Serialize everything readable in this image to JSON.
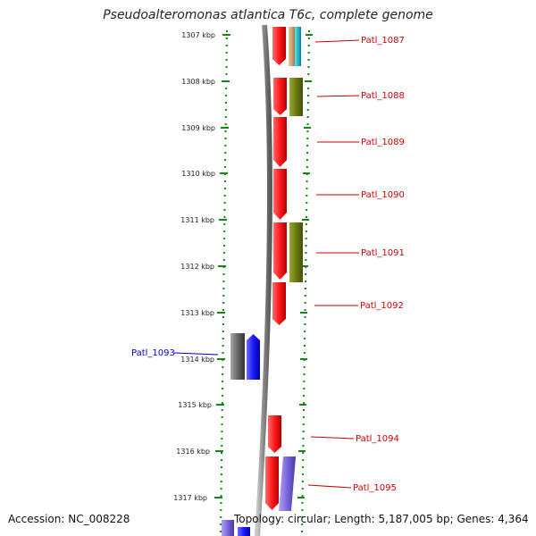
{
  "title": "Pseudoalteromonas atlantica T6c, complete genome",
  "footer": {
    "accession": "Accession: NC_008228",
    "summary": "Topology: circular; Length: 5,187,005 bp; Genes: 4,364"
  },
  "colors": {
    "forward_gene": "#ee1111",
    "reverse_gene": "#1111ee",
    "olive": "#6b7a10",
    "cyan": "#22bbcc",
    "tan": "#c8a070",
    "gray": "#666666",
    "lavender": "#7a66dd",
    "ruler": "#118811",
    "label_forward": "#cc0000",
    "label_reverse": "#0000cc"
  },
  "ruler": {
    "unit": "kbp",
    "ticks": [
      "1307 kbp",
      "1308 kbp",
      "1309 kbp",
      "1310 kbp",
      "1311 kbp",
      "1312 kbp",
      "1313 kbp",
      "1314 kbp",
      "1315 kbp",
      "1316 kbp",
      "1317 kbp"
    ]
  },
  "genes": [
    {
      "name": "Patl_1087",
      "strand": "forward"
    },
    {
      "name": "Patl_1088",
      "strand": "forward"
    },
    {
      "name": "Patl_1089",
      "strand": "forward"
    },
    {
      "name": "Patl_1090",
      "strand": "forward"
    },
    {
      "name": "Patl_1091",
      "strand": "forward"
    },
    {
      "name": "Patl_1092",
      "strand": "forward"
    },
    {
      "name": "Patl_1093",
      "strand": "reverse"
    },
    {
      "name": "Patl_1094",
      "strand": "forward"
    },
    {
      "name": "Patl_1095",
      "strand": "forward"
    }
  ]
}
